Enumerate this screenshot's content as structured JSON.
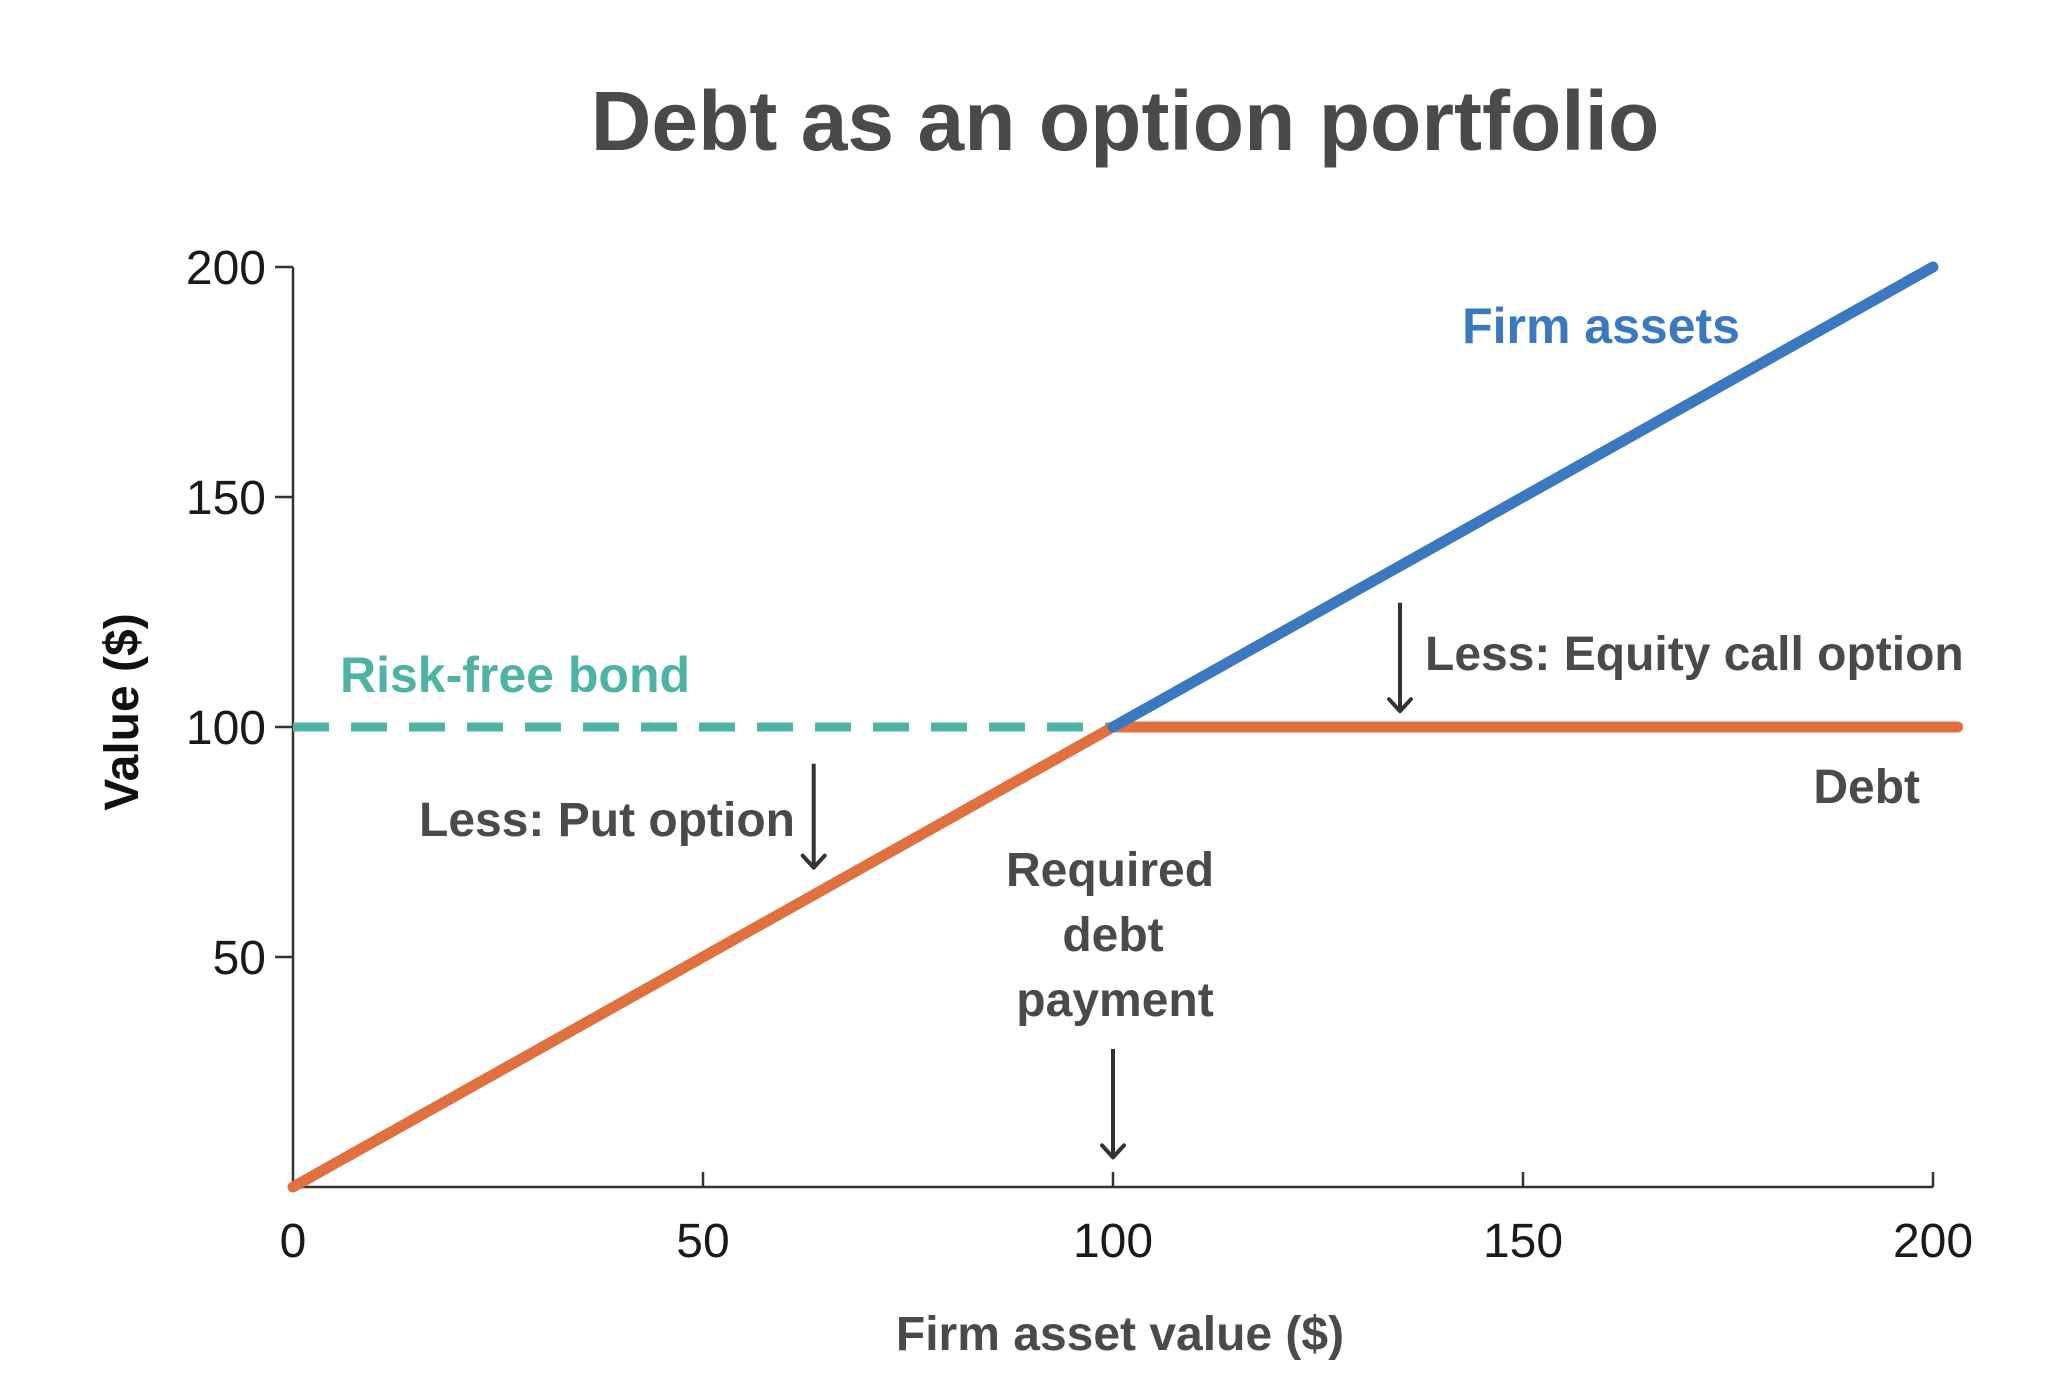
{
  "chart_data": {
    "type": "line",
    "title": "Debt as an option portfolio",
    "xlabel": "Firm asset value ($)",
    "ylabel": "Value ($)",
    "xlim": [
      0,
      200
    ],
    "ylim": [
      0,
      200
    ],
    "x_ticks": [
      0,
      50,
      100,
      150,
      200
    ],
    "y_ticks": [
      50,
      100,
      150,
      200
    ],
    "grid": false,
    "legend": "none (series labelled inline)",
    "series": [
      {
        "name": "Firm assets",
        "color": "#3a78bf",
        "style": "solid",
        "x": [
          100,
          200
        ],
        "y": [
          100,
          200
        ]
      },
      {
        "name": "Risk-free bond",
        "color": "#4db3a4",
        "style": "dashed",
        "x": [
          0,
          100
        ],
        "y": [
          100,
          100
        ]
      },
      {
        "name": "Debt",
        "color": "#e0703d",
        "style": "solid",
        "x": [
          0,
          100,
          203
        ],
        "y": [
          0,
          100,
          100
        ]
      }
    ],
    "annotations": [
      {
        "text": "Less: Equity call option",
        "arrow_x": 135,
        "arrow_from_y": 127,
        "arrow_to_y": 103
      },
      {
        "text": "Less: Put option",
        "arrow_x": 63.5,
        "arrow_from_y": 92,
        "arrow_to_y": 69
      },
      {
        "text_lines": [
          "Required",
          "debt",
          "payment"
        ],
        "arrow_x": 100,
        "arrow_from_y": 30,
        "arrow_to_y": 6
      }
    ]
  }
}
